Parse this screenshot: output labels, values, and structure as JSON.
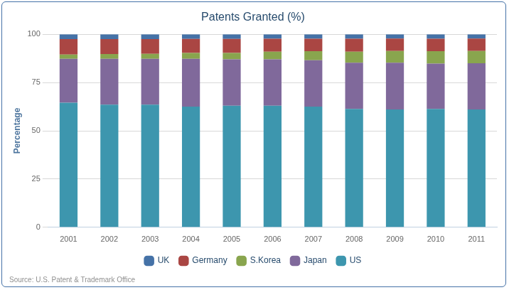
{
  "chart_data": {
    "type": "bar",
    "title": "Patents Granted (%)",
    "y_label": "Percentage",
    "source": "Source: U.S. Patent & Trademark Office",
    "categories": [
      "2001",
      "2002",
      "2003",
      "2004",
      "2005",
      "2006",
      "2007",
      "2008",
      "2009",
      "2010",
      "2011"
    ],
    "series": [
      {
        "name": "UK",
        "color": "#4572a7",
        "values": [
          2.5,
          2.5,
          2.5,
          2.4,
          2.4,
          2.3,
          2.3,
          2.3,
          2.2,
          2.3,
          2.2
        ]
      },
      {
        "name": "Germany",
        "color": "#aa4643",
        "values": [
          8.0,
          7.7,
          7.6,
          7.3,
          7.3,
          6.7,
          6.5,
          6.7,
          6.5,
          6.5,
          6.5
        ]
      },
      {
        "name": "S.Korea",
        "color": "#89a54e",
        "values": [
          2.2,
          2.5,
          2.6,
          3.0,
          3.3,
          4.0,
          4.7,
          5.7,
          6.0,
          6.4,
          6.3
        ]
      },
      {
        "name": "Japan",
        "color": "#80699b",
        "values": [
          22.8,
          23.8,
          23.8,
          24.8,
          24.0,
          24.0,
          24.0,
          24.0,
          24.3,
          23.5,
          24.0
        ]
      },
      {
        "name": "US",
        "color": "#3d96ae",
        "values": [
          64.5,
          63.5,
          63.5,
          62.5,
          63.0,
          63.0,
          62.5,
          61.3,
          61.0,
          61.3,
          61.0
        ]
      }
    ],
    "ylim": [
      0,
      100
    ],
    "yticks": [
      0,
      25,
      50,
      75,
      100
    ],
    "stacked": true,
    "grid": true,
    "legend": "bottom"
  }
}
